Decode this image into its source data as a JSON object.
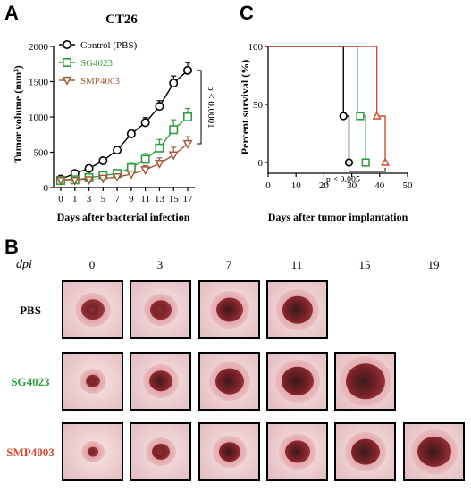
{
  "panels": {
    "a": "A",
    "b": "B",
    "c": "C"
  },
  "chart_data": [
    {
      "type": "line",
      "title": "CT26",
      "xlabel": "Days after bacterial infection",
      "ylabel": "Tumor volume (mm³)",
      "ylim": [
        0,
        2000
      ],
      "yticks": [
        0,
        500,
        1000,
        1500,
        2000
      ],
      "xticks": [
        0,
        1,
        3,
        5,
        7,
        9,
        11,
        13,
        15,
        17
      ],
      "legend_position": "top-left",
      "series": [
        {
          "name": "Control (PBS)",
          "marker": "circle",
          "color": "#000000",
          "x": [
            0,
            1,
            3,
            5,
            7,
            9,
            11,
            13,
            15,
            17
          ],
          "y": [
            120,
            200,
            270,
            380,
            530,
            760,
            920,
            1150,
            1480,
            1660
          ],
          "err": [
            25,
            25,
            30,
            30,
            40,
            50,
            70,
            80,
            100,
            110
          ]
        },
        {
          "name": "SG4023",
          "marker": "square",
          "color": "#2e9e3e",
          "x": [
            0,
            1,
            3,
            5,
            7,
            9,
            11,
            13,
            15,
            17
          ],
          "y": [
            100,
            110,
            140,
            170,
            200,
            280,
            400,
            560,
            820,
            1000
          ],
          "err": [
            20,
            20,
            25,
            30,
            40,
            60,
            80,
            120,
            140,
            120
          ]
        },
        {
          "name": "SMP4003",
          "marker": "triangle-down",
          "color": "#a05a3a",
          "x": [
            0,
            1,
            3,
            5,
            7,
            9,
            11,
            13,
            15,
            17
          ],
          "y": [
            100,
            100,
            110,
            130,
            150,
            190,
            250,
            340,
            460,
            620
          ],
          "err": [
            20,
            20,
            20,
            25,
            30,
            40,
            60,
            80,
            110,
            100
          ]
        }
      ],
      "annotation": "p < 0.0001"
    },
    {
      "type": "line",
      "subtype": "survival-step",
      "xlabel": "Days after tumor implantation",
      "ylabel": "Percent survival (%)",
      "xlim": [
        0,
        50
      ],
      "ylim": [
        0,
        100
      ],
      "xticks": [
        0,
        10,
        20,
        30,
        40,
        50
      ],
      "yticks": [
        0,
        50,
        100
      ],
      "series": [
        {
          "name": "Control (PBS)",
          "marker": "circle",
          "color": "#000000",
          "steps": [
            [
              0,
              100
            ],
            [
              27,
              100
            ],
            [
              27,
              40
            ],
            [
              29,
              40
            ],
            [
              29,
              0
            ]
          ],
          "censored": [
            [
              27,
              40
            ],
            [
              29,
              0
            ]
          ]
        },
        {
          "name": "SG4023",
          "marker": "square",
          "color": "#2e9e3e",
          "steps": [
            [
              0,
              100
            ],
            [
              32,
              100
            ],
            [
              32,
              40
            ],
            [
              35,
              40
            ],
            [
              35,
              0
            ]
          ],
          "censored": [
            [
              33,
              40
            ],
            [
              35,
              0
            ]
          ]
        },
        {
          "name": "SMP4003",
          "marker": "triangle",
          "color": "#d04a35",
          "steps": [
            [
              0,
              100
            ],
            [
              39,
              100
            ],
            [
              39,
              40
            ],
            [
              42,
              40
            ],
            [
              42,
              0
            ]
          ],
          "censored": [
            [
              39,
              40
            ],
            [
              42,
              0
            ]
          ]
        }
      ],
      "annotation": "p < 0.005"
    }
  ],
  "photos": {
    "axis_label": "dpi",
    "days": [
      "0",
      "3",
      "7",
      "11",
      "15",
      "19"
    ],
    "rows": [
      {
        "label": "PBS",
        "color": "#000000",
        "count": 4
      },
      {
        "label": "SG4023",
        "color": "#2e9e3e",
        "count": 5
      },
      {
        "label": "SMP4003",
        "color": "#d04a35",
        "count": 6
      }
    ]
  }
}
